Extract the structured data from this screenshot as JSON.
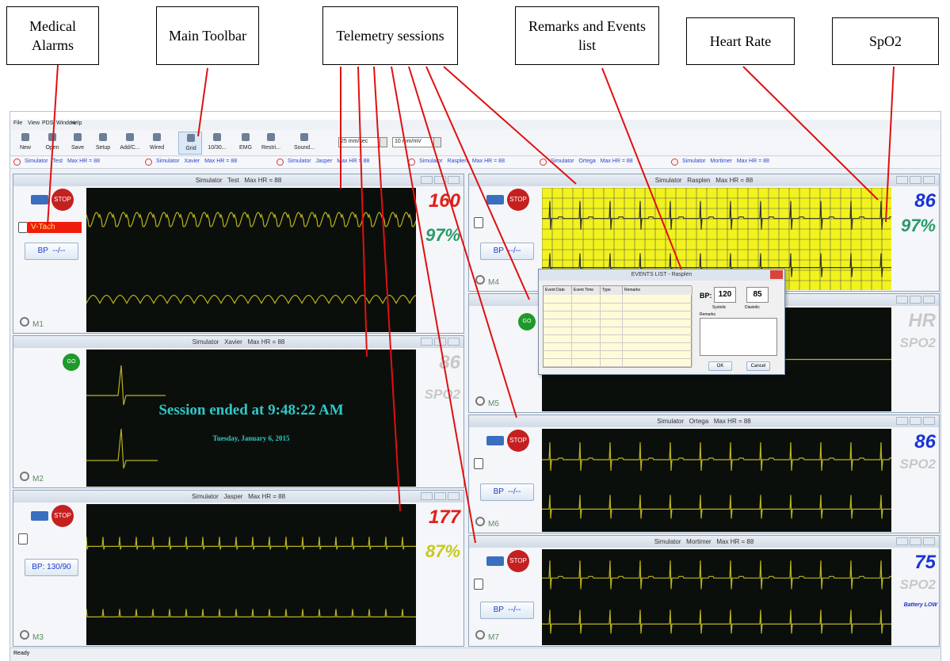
{
  "callouts": [
    "Medical Alarms",
    "Main Toolbar",
    "Telemetry sessions",
    "Remarks and Events list",
    "Heart Rate",
    "SpO2"
  ],
  "menu": [
    "File",
    "View",
    "PDS",
    "Window",
    "Help"
  ],
  "toolbar": [
    "New",
    "Open",
    "Save",
    "Setup",
    "Add/C...",
    "Wired",
    "Grid",
    "10/30...",
    "EMG",
    "Restri...",
    "Sound..."
  ],
  "dropdowns": [
    "25 mm/sec",
    "10 mm/mV"
  ],
  "sessions": [
    {
      "title": "Simulator   Test   Max HR = 88",
      "id": "M1",
      "hr": "160",
      "hr_color": "#e0201a",
      "spo2": "97%",
      "spo2_color": "#2a9a6a",
      "alarm": "V-Tach",
      "bp": "BP  --/--",
      "stop": "STOP"
    },
    {
      "title": "Simulator   Xavier   Max HR = 88",
      "id": "M2",
      "hr": "86",
      "hr_color": "#c8c8c8",
      "spo2": "SPO2",
      "spo2_color": "#c8c8c8",
      "go": "GO",
      "message": "Session ended at 9:48:22 AM",
      "date": "Tuesday, January 6, 2015"
    },
    {
      "title": "Simulator   Jasper   Max HR = 88",
      "id": "M3",
      "hr": "177",
      "hr_color": "#e0201a",
      "spo2": "87%",
      "spo2_color": "#c8c820",
      "bp": "BP: 130/90",
      "stop": "STOP"
    },
    {
      "title": "Simulator   Rasplen   Max HR = 88",
      "id": "M4",
      "hr": "86",
      "hr_color": "#1a33d6",
      "spo2": "97%",
      "spo2_color": "#2a9a6a",
      "bp": "BP  --/--",
      "stop": "STOP"
    },
    {
      "id": "M5",
      "hr": "HR",
      "hr_color": "#c8c8c8",
      "spo2": "SPO2",
      "spo2_color": "#c8c8c8",
      "go": "GO"
    },
    {
      "title": "Simulator   Ortega   Max HR = 88",
      "id": "M6",
      "hr": "86",
      "hr_color": "#1a33d6",
      "spo2": "SPO2",
      "spo2_color": "#c8c8c8",
      "bp": "BP  --/--",
      "stop": "STOP"
    },
    {
      "title": "Simulator   Mortimer   Max HR = 88",
      "id": "M7",
      "hr": "75",
      "hr_color": "#1a33d6",
      "spo2": "SPO2",
      "spo2_color": "#c8c8c8",
      "battery": "Battery LOW",
      "bp": "BP  --/--",
      "stop": "STOP"
    }
  ],
  "dialog": {
    "title": "EVENTS LIST - Rasplen",
    "columns": [
      "Event Date",
      "Event Time",
      "Type",
      "Remarks"
    ],
    "bp_label": "BP:",
    "systolic": "120",
    "diastolic": "85",
    "systolic_label": "Systolic",
    "diastolic_label": "Diastolic",
    "remarks_label": "Remarks",
    "ok": "OK",
    "cancel": "Cancel"
  },
  "status": "Ready"
}
